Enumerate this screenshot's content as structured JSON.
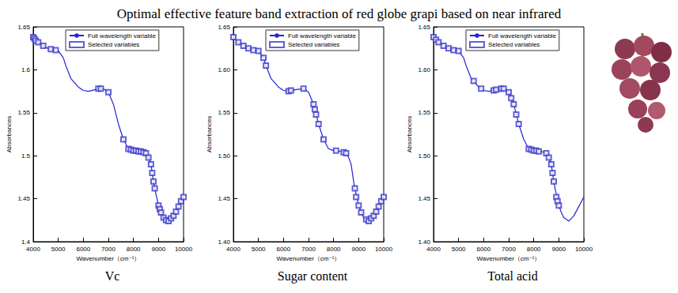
{
  "title": "Optimal effective feature band extraction of red globe grapi based on near infrared",
  "chart_data": [
    {
      "type": "line",
      "title": "Vc",
      "x_label": "Wavenumber（cm⁻¹）",
      "y_label": "Absorbances",
      "xlim": [
        4000,
        10000
      ],
      "xticks": [
        4000,
        5000,
        6000,
        7000,
        8000,
        9000,
        10000
      ],
      "ylim": [
        1.4,
        1.65
      ],
      "yticks": [
        1.4,
        1.45,
        1.5,
        1.55,
        1.6,
        1.65
      ],
      "grid": false,
      "legend": "upper right",
      "series": [
        {
          "name": "Full wavelength variable",
          "type": "line",
          "line_style": "solid",
          "color": "#2424d4",
          "x": [
            4000,
            4200,
            4500,
            4800,
            5000,
            5200,
            5300,
            5500,
            5800,
            6000,
            6200,
            6500,
            6800,
            7000,
            7200,
            7400,
            7500,
            7600,
            7800,
            8000,
            8300,
            8500,
            8600,
            8700,
            8800,
            8850,
            9000,
            9100,
            9200,
            9400,
            9600,
            9800,
            10000
          ],
          "values": [
            1.638,
            1.632,
            1.626,
            1.623,
            1.622,
            1.614,
            1.605,
            1.59,
            1.58,
            1.576,
            1.575,
            1.577,
            1.578,
            1.574,
            1.56,
            1.537,
            1.528,
            1.519,
            1.508,
            1.506,
            1.505,
            1.503,
            1.498,
            1.49,
            1.47,
            1.462,
            1.442,
            1.434,
            1.428,
            1.424,
            1.43,
            1.441,
            1.452
          ]
        },
        {
          "name": "Selected variables",
          "type": "scatter",
          "marker": "square",
          "color": "#3a3ac8",
          "x": [
            4000,
            4050,
            4100,
            4200,
            4400,
            4700,
            4900,
            6600,
            6700,
            7000,
            7600,
            7800,
            7900,
            8000,
            8100,
            8200,
            8300,
            8400,
            8500,
            8600,
            8700,
            8750,
            8800,
            8850,
            9000,
            9050,
            9100,
            9200,
            9300,
            9400,
            9500,
            9600,
            9700,
            9800,
            9900,
            10000
          ],
          "values": [
            1.638,
            1.636,
            1.634,
            1.632,
            1.628,
            1.624,
            1.623,
            1.578,
            1.578,
            1.574,
            1.519,
            1.508,
            1.507,
            1.506,
            1.506,
            1.505,
            1.505,
            1.504,
            1.503,
            1.498,
            1.49,
            1.48,
            1.47,
            1.462,
            1.442,
            1.438,
            1.434,
            1.428,
            1.425,
            1.424,
            1.427,
            1.43,
            1.435,
            1.441,
            1.447,
            1.452
          ]
        }
      ]
    },
    {
      "type": "line",
      "title": "Sugar content",
      "x_label": "Wavenumber（cm⁻¹）",
      "y_label": "Absorbances",
      "xlim": [
        4000,
        10000
      ],
      "xticks": [
        4000,
        5000,
        6000,
        7000,
        8000,
        9000,
        10000
      ],
      "ylim": [
        1.4,
        1.65
      ],
      "yticks": [
        {
          "value": 1.4,
          "label": "1.40"
        },
        {
          "value": 1.45,
          "label": "1.45"
        },
        {
          "value": 1.5,
          "label": "1.50"
        },
        {
          "value": 1.55,
          "label": "1.55"
        },
        {
          "value": 1.6,
          "label": "1.60"
        },
        {
          "value": 1.65,
          "label": "1.65"
        }
      ],
      "grid": false,
      "legend": "upper right",
      "series": [
        {
          "name": "Full wavelength variable",
          "type": "line",
          "line_style": "solid",
          "color": "#2424d4",
          "x": [
            4000,
            4200,
            4500,
            4800,
            5000,
            5200,
            5300,
            5500,
            5800,
            6000,
            6200,
            6500,
            6800,
            7000,
            7200,
            7400,
            7500,
            7600,
            7800,
            8000,
            8300,
            8500,
            8600,
            8700,
            8800,
            8850,
            9000,
            9100,
            9200,
            9400,
            9600,
            9800,
            10000
          ],
          "values": [
            1.638,
            1.632,
            1.626,
            1.623,
            1.622,
            1.614,
            1.605,
            1.59,
            1.58,
            1.576,
            1.575,
            1.577,
            1.578,
            1.574,
            1.56,
            1.537,
            1.528,
            1.519,
            1.508,
            1.506,
            1.505,
            1.503,
            1.498,
            1.49,
            1.47,
            1.462,
            1.442,
            1.434,
            1.428,
            1.424,
            1.43,
            1.441,
            1.452
          ]
        },
        {
          "name": "Selected variables",
          "type": "scatter",
          "marker": "square",
          "color": "#3a3ac8",
          "x": [
            4000,
            4200,
            4400,
            4600,
            4800,
            5000,
            5200,
            5300,
            6200,
            6300,
            6800,
            7200,
            7250,
            7300,
            7400,
            7600,
            8100,
            8400,
            8500,
            8850,
            8900,
            9000,
            9100,
            9300,
            9400,
            9500,
            9600,
            9700,
            9800,
            9900,
            10000
          ],
          "values": [
            1.638,
            1.632,
            1.628,
            1.625,
            1.623,
            1.622,
            1.614,
            1.605,
            1.575,
            1.576,
            1.578,
            1.56,
            1.554,
            1.548,
            1.537,
            1.519,
            1.506,
            1.504,
            1.503,
            1.462,
            1.452,
            1.442,
            1.434,
            1.426,
            1.424,
            1.427,
            1.43,
            1.435,
            1.441,
            1.447,
            1.452
          ]
        }
      ]
    },
    {
      "type": "line",
      "title": "Total acid",
      "x_label": "Wavenumber（cm⁻¹）",
      "y_label": "Absorbances",
      "xlim": [
        4000,
        10000
      ],
      "xticks": [
        4000,
        5000,
        6000,
        7000,
        8000,
        9000,
        10000
      ],
      "ylim": [
        1.4,
        1.65
      ],
      "yticks": [
        {
          "value": 1.4,
          "label": "1.40"
        },
        {
          "value": 1.45,
          "label": "1.45"
        },
        {
          "value": 1.5,
          "label": "1.50"
        },
        {
          "value": 1.55,
          "label": "1.55"
        },
        {
          "value": 1.6,
          "label": "1.60"
        },
        {
          "value": 1.65,
          "label": "1.65"
        }
      ],
      "grid": false,
      "legend": "upper right",
      "series": [
        {
          "name": "Full wavelength variable",
          "type": "line",
          "line_style": "solid",
          "color": "#2424d4",
          "x": [
            4000,
            4200,
            4500,
            4800,
            5000,
            5200,
            5300,
            5500,
            5800,
            6000,
            6200,
            6500,
            6800,
            7000,
            7200,
            7400,
            7500,
            7600,
            7800,
            8000,
            8300,
            8500,
            8600,
            8700,
            8800,
            8850,
            9000,
            9100,
            9200,
            9400,
            9600,
            9800,
            10000
          ],
          "values": [
            1.638,
            1.632,
            1.626,
            1.623,
            1.622,
            1.614,
            1.605,
            1.59,
            1.58,
            1.576,
            1.575,
            1.577,
            1.578,
            1.574,
            1.56,
            1.537,
            1.528,
            1.519,
            1.508,
            1.506,
            1.505,
            1.503,
            1.498,
            1.49,
            1.47,
            1.462,
            1.442,
            1.434,
            1.428,
            1.424,
            1.43,
            1.441,
            1.452
          ]
        },
        {
          "name": "Selected variables",
          "type": "scatter",
          "marker": "square",
          "color": "#3a3ac8",
          "x": [
            4000,
            4100,
            4200,
            4400,
            4600,
            4800,
            5000,
            5600,
            5900,
            6400,
            6500,
            6700,
            6800,
            7000,
            7100,
            7200,
            7300,
            7400,
            7800,
            7900,
            8000,
            8100,
            8200,
            8500,
            8600,
            8700,
            8750,
            8800,
            8900,
            8950,
            9000
          ],
          "values": [
            1.638,
            1.635,
            1.632,
            1.628,
            1.625,
            1.623,
            1.622,
            1.587,
            1.578,
            1.576,
            1.577,
            1.578,
            1.578,
            1.574,
            1.567,
            1.56,
            1.548,
            1.537,
            1.508,
            1.507,
            1.506,
            1.506,
            1.505,
            1.503,
            1.498,
            1.49,
            1.48,
            1.47,
            1.452,
            1.447,
            1.442
          ]
        }
      ]
    }
  ]
}
